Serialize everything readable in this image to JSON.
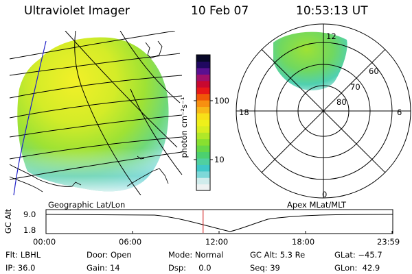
{
  "header": {
    "title": "Ultraviolet Imager",
    "date": "10 Feb 07",
    "time": "10:53:13 UT"
  },
  "left_panel": {
    "label": "Geographic Lat/Lon"
  },
  "right_panel": {
    "label": "Apex MLat/MLT",
    "mlt_labels": [
      "12",
      "18",
      "6",
      "0"
    ],
    "lat_labels": [
      "60",
      "70",
      "80"
    ]
  },
  "colorbar": {
    "unit_label": "photon cm⁻²s⁻¹",
    "tick_labels": [
      "100",
      "10"
    ],
    "colors": [
      "#eef2f2",
      "#d0ecec",
      "#7ed8d8",
      "#40c8c8",
      "#50d0a0",
      "#4cd070",
      "#66d848",
      "#88e030",
      "#b0e828",
      "#d8ee20",
      "#eef01a",
      "#f8e018",
      "#f8b818",
      "#f89010",
      "#f05808",
      "#e81818",
      "#c80830",
      "#a0106a",
      "#5a1090",
      "#200860",
      "#080828"
    ]
  },
  "altitude_plot": {
    "axis_label": "GC Alt",
    "y_labels": [
      "9.0",
      "1.8"
    ],
    "x_labels": [
      "00:00",
      "06:00",
      "12:00",
      "18:00",
      "23:59"
    ],
    "current_time_fraction": 0.454
  },
  "status": {
    "filter": "Flt: LBHL",
    "ip": "IP: 36.0",
    "door": "Door: Open",
    "gain": "Gain: 14",
    "mode": "Mode: Normal",
    "dsp": "Dsp:     0.0",
    "gc_alt": "GC Alt: 5.3 Re",
    "seq": "Seq: 39",
    "glat": "GLat: −45.7",
    "glon": "GLon:  42.9"
  }
}
